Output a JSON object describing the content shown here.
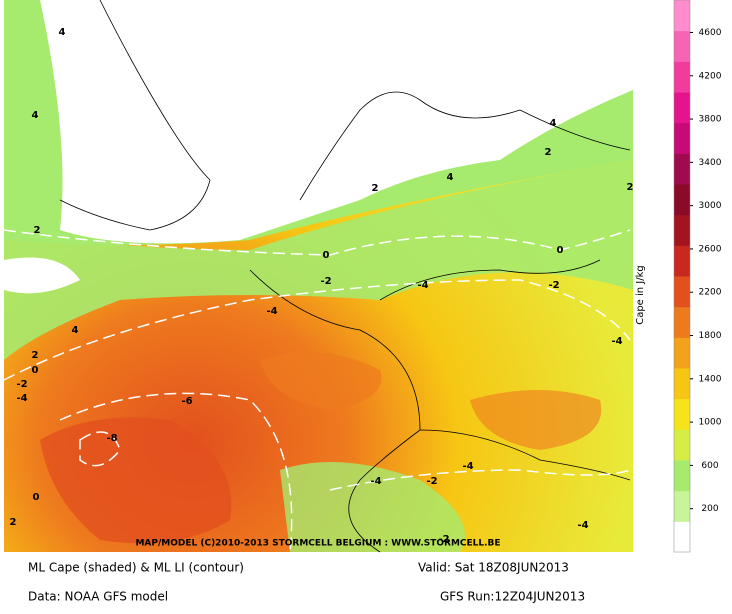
{
  "map": {
    "copyright": "MAP/MODEL (C)2010-2013 STORMCELL BELGIUM : WWW.STORMCELL.BE",
    "contour_labels": [
      "4",
      "4",
      "2",
      "4",
      "2",
      "0",
      "-2",
      "-4",
      "-6",
      "-8",
      "0",
      "2",
      "0",
      "-2",
      "-4",
      "-4",
      "-2",
      "0",
      "-4",
      "-4",
      "-4",
      "-2",
      "-2",
      "-4",
      "2",
      "4",
      "4",
      "2",
      "2"
    ]
  },
  "colorbar": {
    "label": "Cape in J/kg",
    "range": [
      -200,
      4900
    ],
    "ticks": [
      200,
      600,
      1000,
      1400,
      1800,
      2200,
      2600,
      3000,
      3400,
      3800,
      4200,
      4600
    ],
    "colors": [
      "#ffffff",
      "#c8f59a",
      "#a6ea6e",
      "#d8ec46",
      "#f5e41a",
      "#f7c614",
      "#f3a21c",
      "#ee7a1e",
      "#e2501e",
      "#c8281e",
      "#a4141e",
      "#8a0a28",
      "#a00a50",
      "#c80a78",
      "#e6148c",
      "#f03c9c",
      "#f864b4",
      "#ff8ccc"
    ]
  },
  "caption": {
    "title": "ML Cape (shaded) & ML LI (contour)",
    "valid": "Valid: Sat 18Z08JUN2013",
    "data": "Data: NOAA GFS model",
    "run": "GFS Run:12Z04JUN2013"
  }
}
